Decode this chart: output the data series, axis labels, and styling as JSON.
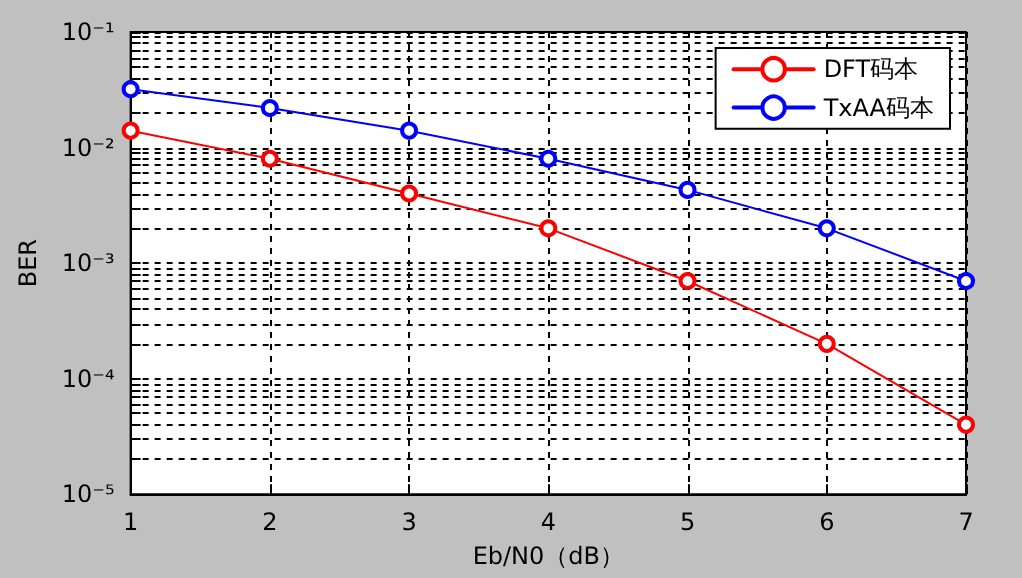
{
  "chart_data": {
    "type": "line",
    "xlabel": "Eb/N0（dB）",
    "ylabel": "BER",
    "x": [
      1,
      2,
      3,
      4,
      5,
      6,
      7
    ],
    "series": [
      {
        "name": "DFT码本",
        "color": "#ff0000",
        "values": [
          0.014,
          0.008,
          0.004,
          0.002,
          0.0007,
          0.0002,
          4e-05
        ]
      },
      {
        "name": "TxAA码本",
        "color": "#0000ff",
        "values": [
          0.032,
          0.022,
          0.014,
          0.008,
          0.0043,
          0.002,
          0.0007
        ]
      }
    ],
    "xlim": [
      1,
      7
    ],
    "xticks": [
      1,
      2,
      3,
      4,
      5,
      6,
      7
    ],
    "ylim": [
      1e-05,
      0.1
    ],
    "yticks": [
      {
        "value": 1e-05,
        "label": "10⁻⁵"
      },
      {
        "value": 2e-05,
        "label": null
      },
      {
        "value": 3e-05,
        "label": null
      },
      {
        "value": 4e-05,
        "label": null
      },
      {
        "value": 5e-05,
        "label": null
      },
      {
        "value": 6e-05,
        "label": null
      },
      {
        "value": 7e-05,
        "label": null
      },
      {
        "value": 8e-05,
        "label": null
      },
      {
        "value": 9e-05,
        "label": null
      },
      {
        "value": 0.0001,
        "label": "10⁻⁴"
      },
      {
        "value": 0.0002,
        "label": null
      },
      {
        "value": 0.0003,
        "label": null
      },
      {
        "value": 0.0004,
        "label": null
      },
      {
        "value": 0.0005,
        "label": null
      },
      {
        "value": 0.0006,
        "label": null
      },
      {
        "value": 0.0007,
        "label": null
      },
      {
        "value": 0.0008,
        "label": null
      },
      {
        "value": 0.0009,
        "label": null
      },
      {
        "value": 0.001,
        "label": "10⁻³"
      },
      {
        "value": 0.002,
        "label": null
      },
      {
        "value": 0.003,
        "label": null
      },
      {
        "value": 0.004,
        "label": null
      },
      {
        "value": 0.005,
        "label": null
      },
      {
        "value": 0.006,
        "label": null
      },
      {
        "value": 0.007,
        "label": null
      },
      {
        "value": 0.008,
        "label": null
      },
      {
        "value": 0.009,
        "label": null
      },
      {
        "value": 0.01,
        "label": "10⁻²"
      },
      {
        "value": 0.02,
        "label": null
      },
      {
        "value": 0.03,
        "label": null
      },
      {
        "value": 0.04,
        "label": null
      },
      {
        "value": 0.05,
        "label": null
      },
      {
        "value": 0.06,
        "label": null
      },
      {
        "value": 0.07,
        "label": null
      },
      {
        "value": 0.08,
        "label": null
      },
      {
        "value": 0.09,
        "label": null
      },
      {
        "value": 0.1,
        "label": "10⁻¹"
      }
    ],
    "log": "y",
    "grid": true,
    "legend": "top right",
    "marker": "circle",
    "line_style": "solid"
  }
}
